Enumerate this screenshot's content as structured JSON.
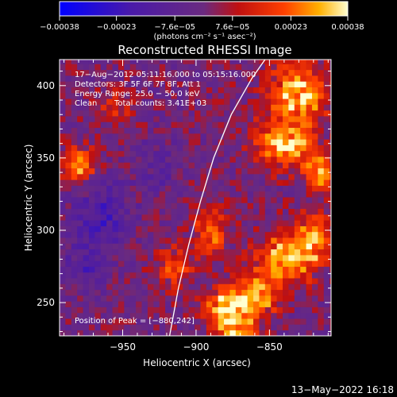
{
  "chart_data": {
    "type": "heatmap",
    "title": "Reconstructed RHESSI Image",
    "xlabel": "Heliocentric X (arcsec)",
    "ylabel": "Heliocentric Y (arcsec)",
    "xlim": [
      -993,
      -808
    ],
    "ylim": [
      227,
      418
    ],
    "x_ticks": [
      -950,
      -900,
      -850
    ],
    "x_tick_labels": [
      "−950",
      "−900",
      "−850"
    ],
    "y_ticks": [
      250,
      300,
      350,
      400
    ],
    "y_tick_labels": [
      "250",
      "300",
      "350",
      "400"
    ],
    "colorbar": {
      "range": [
        -0.00038,
        0.00038
      ],
      "ticks": [
        -0.00038,
        -0.00023,
        -7.6e-05,
        7.6e-05,
        0.00023,
        0.00038
      ],
      "tick_labels": [
        "−0.00038",
        "−0.00023",
        "−7.6e−05",
        "7.6e−05",
        "0.00023",
        "0.00038"
      ],
      "units": "(photons cm⁻² s⁻¹ asec⁻²)"
    },
    "limb": [
      [
        -918,
        227
      ],
      [
        -912,
        260
      ],
      [
        -905,
        290
      ],
      [
        -897,
        320
      ],
      [
        -888,
        350
      ],
      [
        -876,
        380
      ],
      [
        -862,
        405
      ],
      [
        -853,
        418
      ]
    ],
    "hot_spots": [
      {
        "x": -880,
        "y": 245,
        "amp": 0.00036,
        "sx": 10,
        "sy": 9
      },
      {
        "x": -860,
        "y": 255,
        "amp": 0.00028,
        "sx": 12,
        "sy": 10
      },
      {
        "x": -840,
        "y": 280,
        "amp": 0.0003,
        "sx": 14,
        "sy": 12
      },
      {
        "x": -820,
        "y": 295,
        "amp": 0.00026,
        "sx": 10,
        "sy": 12
      },
      {
        "x": -890,
        "y": 300,
        "amp": 0.0002,
        "sx": 8,
        "sy": 14
      },
      {
        "x": -840,
        "y": 360,
        "amp": 0.00032,
        "sx": 14,
        "sy": 12
      },
      {
        "x": -830,
        "y": 395,
        "amp": 0.00034,
        "sx": 14,
        "sy": 14
      },
      {
        "x": -815,
        "y": 340,
        "amp": 0.00025,
        "sx": 8,
        "sy": 10
      },
      {
        "x": -980,
        "y": 345,
        "amp": 0.00028,
        "sx": 8,
        "sy": 9
      },
      {
        "x": -915,
        "y": 275,
        "amp": 0.0002,
        "sx": 9,
        "sy": 10
      },
      {
        "x": -955,
        "y": 385,
        "amp": 0.00016,
        "sx": 9,
        "sy": 8
      },
      {
        "x": -870,
        "y": 230,
        "amp": 0.00024,
        "sx": 10,
        "sy": 7
      }
    ],
    "cold_spots": [
      {
        "x": -965,
        "y": 310,
        "amp": -0.00018,
        "sx": 14,
        "sy": 18
      },
      {
        "x": -975,
        "y": 275,
        "amp": -0.00012,
        "sx": 10,
        "sy": 10
      },
      {
        "x": -925,
        "y": 345,
        "amp": -0.0001,
        "sx": 10,
        "sy": 12
      }
    ],
    "annotations": {
      "date": "17−Aug−2012 05:11:16.000 to 05:15:16.000",
      "detectors": "Detectors: 3F 5F 6F 7F 8F, Att 1",
      "energy": "Energy Range: 25.0 − 50.0 keV",
      "method": "Clean",
      "counts": "Total counts: 3.41E+03",
      "peak": "Position of Peak = [−880,242]"
    },
    "timestamp": "13−May−2022 16:18"
  }
}
